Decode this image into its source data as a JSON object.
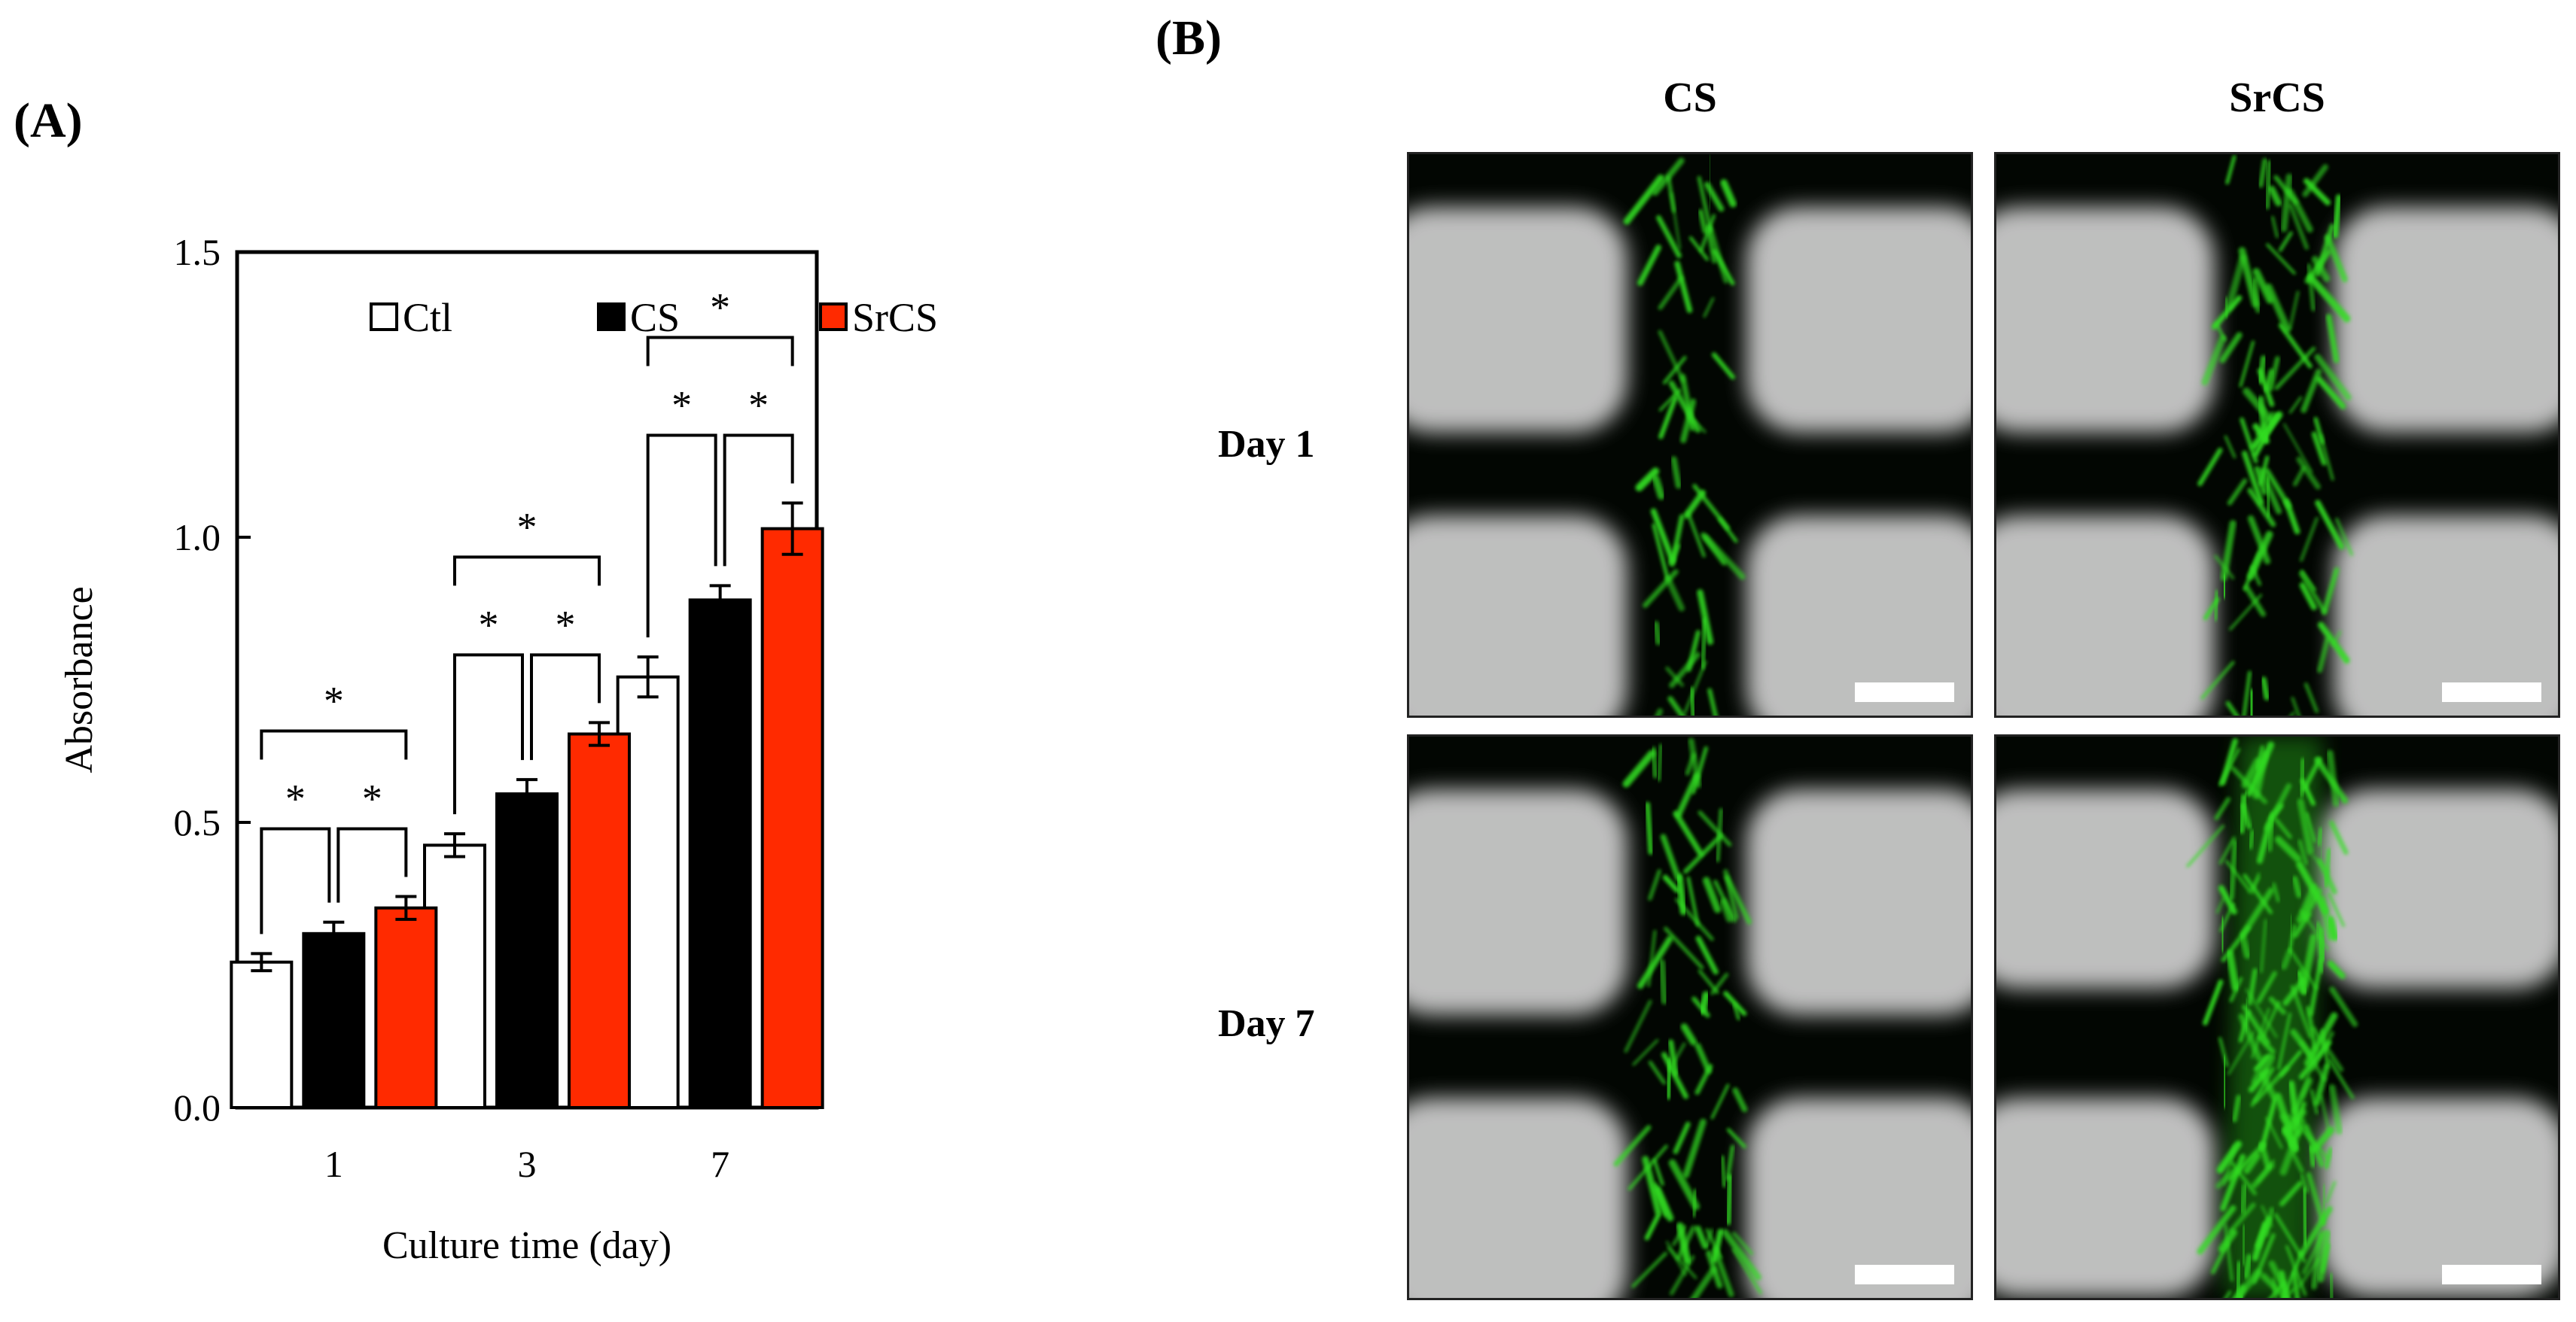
{
  "panel_a_label": "(A)",
  "panel_b_label": "(B)",
  "chart_data": {
    "type": "bar",
    "categories": [
      "1",
      "3",
      "7"
    ],
    "series": [
      {
        "name": "Ctl",
        "values": [
          0.255,
          0.46,
          0.755
        ],
        "errors": [
          0.015,
          0.02,
          0.035
        ],
        "color": "#ffffff"
      },
      {
        "name": "CS",
        "values": [
          0.305,
          0.55,
          0.89
        ],
        "errors": [
          0.02,
          0.025,
          0.025
        ],
        "color": "#000000"
      },
      {
        "name": "SrCS",
        "values": [
          0.35,
          0.655,
          1.015
        ],
        "errors": [
          0.02,
          0.02,
          0.045
        ],
        "color": "#ff2a00"
      }
    ],
    "xlabel": "Culture time (day)",
    "ylabel": "Absorbance",
    "ylim": [
      0,
      1.5
    ],
    "yticks": [
      "0.0",
      "0.5",
      "1.0",
      "1.5"
    ],
    "legend_position": "top",
    "significance_marker": "*",
    "grid": false
  },
  "panel_b": {
    "columns": [
      "CS",
      "SrCS"
    ],
    "rows": [
      "Day 1",
      "Day 7"
    ],
    "stain_color": "#33dd22",
    "scaffold_color": "#cfcfcf"
  }
}
